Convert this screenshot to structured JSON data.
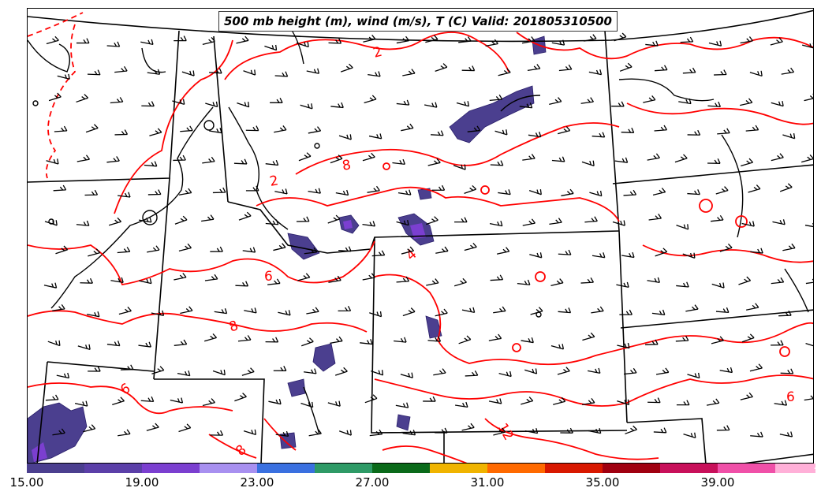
{
  "title": "500 mb height (m), wind (m/s), T (C) Valid: 201805310500",
  "contour_labels": [
    {
      "text": "2",
      "id": "label-2-north"
    },
    {
      "text": "2",
      "id": "label-2-central"
    },
    {
      "text": "4",
      "id": "label-4"
    },
    {
      "text": "6",
      "id": "label-6-central"
    },
    {
      "text": "6",
      "id": "label-6-southwest"
    },
    {
      "text": "6",
      "id": "label-6-east"
    },
    {
      "text": "8",
      "id": "label-8-north"
    },
    {
      "text": "8",
      "id": "label-8-central"
    },
    {
      "text": "8",
      "id": "label-8-south"
    },
    {
      "text": "12",
      "id": "label-12"
    }
  ],
  "colorbar": {
    "tick_labels": [
      "15.00",
      "19.00",
      "23.00",
      "27.00",
      "31.00",
      "35.00",
      "39.00"
    ],
    "colors": [
      "#4b3f8f",
      "#5b3fa8",
      "#7b3fd0",
      "#a890f0",
      "#3a70e0",
      "#2e9a66",
      "#0a6a1a",
      "#f0b400",
      "#ff6a00",
      "#d81800",
      "#a00010",
      "#c8105a",
      "#f050a8",
      "#ffb0d8"
    ]
  },
  "colors": {
    "temperature_contour": "#ff0000",
    "boundaries": "#000000",
    "wind_barbs": "#000000",
    "shading_low": "#4b3f8f"
  }
}
